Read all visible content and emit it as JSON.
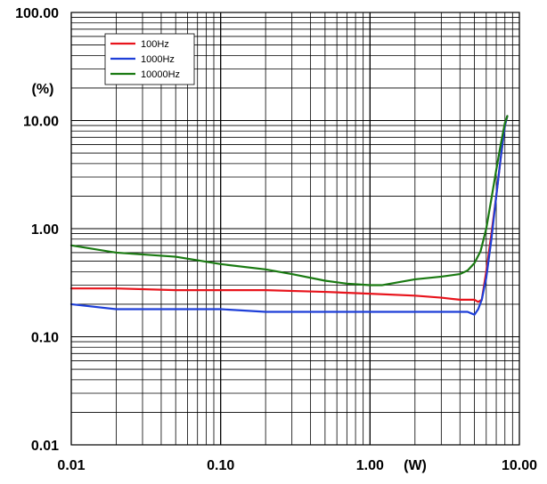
{
  "chart_data": {
    "type": "line",
    "title": "",
    "xlabel": "(W)",
    "ylabel": "(%)",
    "x_scale": "log",
    "y_scale": "log",
    "xlim": [
      0.01,
      10
    ],
    "ylim": [
      0.01,
      100
    ],
    "grid": true,
    "legend_position": "top-left",
    "x_tick_labels": [
      "0.01",
      "0.10",
      "1.00",
      "10.00"
    ],
    "y_tick_labels": [
      "0.01",
      "0.10",
      "1.00",
      "10.00",
      "100.00"
    ],
    "series": [
      {
        "name": "100Hz",
        "color": "#e8141c",
        "x": [
          0.01,
          0.02,
          0.05,
          0.1,
          0.2,
          0.5,
          1.0,
          2.0,
          3.0,
          4.0,
          4.5,
          5.0,
          5.3,
          5.6,
          6.0,
          6.5,
          7.0,
          7.5,
          8.0,
          8.3
        ],
        "y": [
          0.28,
          0.28,
          0.27,
          0.27,
          0.27,
          0.26,
          0.25,
          0.24,
          0.23,
          0.22,
          0.22,
          0.22,
          0.21,
          0.22,
          0.4,
          0.9,
          2.0,
          4.5,
          9.0,
          11.0
        ]
      },
      {
        "name": "1000Hz",
        "color": "#1e3fd8",
        "x": [
          0.01,
          0.02,
          0.05,
          0.1,
          0.2,
          0.5,
          1.0,
          2.0,
          3.0,
          4.0,
          4.5,
          5.0,
          5.3,
          5.6,
          6.0,
          6.5,
          7.0,
          7.5,
          8.0,
          8.3
        ],
        "y": [
          0.2,
          0.18,
          0.18,
          0.18,
          0.17,
          0.17,
          0.17,
          0.17,
          0.17,
          0.17,
          0.17,
          0.16,
          0.18,
          0.22,
          0.35,
          0.8,
          2.0,
          4.5,
          9.0,
          11.0
        ]
      },
      {
        "name": "10000Hz",
        "color": "#1a7a12",
        "x": [
          0.01,
          0.02,
          0.05,
          0.1,
          0.2,
          0.3,
          0.5,
          0.7,
          1.0,
          1.2,
          2.0,
          3.0,
          4.0,
          4.5,
          5.0,
          5.5,
          6.0,
          6.5,
          7.0,
          7.5,
          8.0,
          8.3
        ],
        "y": [
          0.7,
          0.6,
          0.55,
          0.47,
          0.42,
          0.38,
          0.33,
          0.31,
          0.3,
          0.3,
          0.34,
          0.36,
          0.38,
          0.41,
          0.48,
          0.62,
          1.0,
          1.9,
          3.5,
          6.0,
          9.5,
          11.0
        ]
      }
    ]
  }
}
